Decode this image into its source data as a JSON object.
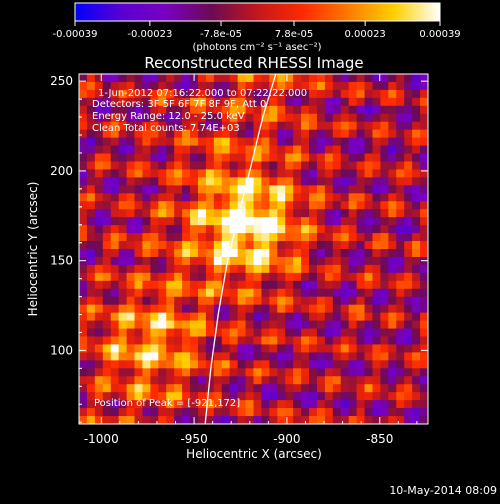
{
  "colorbar": {
    "tick_labels": [
      "-0.00039",
      "-0.00023",
      "-7.8e-05",
      "7.8e-05",
      "0.00023",
      "0.00039"
    ],
    "tick_values": [
      -0.00039,
      -0.00023,
      -7.8e-05,
      7.8e-05,
      0.00023,
      0.00039
    ],
    "range": [
      -0.00039,
      0.00039
    ],
    "unit_label": "(photons cm⁻² s⁻¹ asec⁻²)",
    "colors": [
      "#0000ff",
      "#5a00d2",
      "#7a00c0",
      "#6b0b52",
      "#c4171d",
      "#ff2a00",
      "#ff7a00",
      "#ffd000",
      "#ffffff"
    ]
  },
  "chart_data": {
    "type": "heatmap",
    "title": "Reconstructed RHESSI Image",
    "xlabel": "Heliocentric X (arcsec)",
    "ylabel": "Heliocentric Y (arcsec)",
    "xlim": [
      -1012,
      -824
    ],
    "ylim": [
      59,
      254
    ],
    "x_ticks": [
      -1000,
      -950,
      -900,
      -850
    ],
    "x_tick_labels": [
      "-1000",
      "-950",
      "-900",
      "-850"
    ],
    "y_ticks": [
      100,
      150,
      200,
      250
    ],
    "y_tick_labels": [
      "100",
      "150",
      "200",
      "250"
    ],
    "annotations": [
      "1-Jun-2012 07:16:22.000 to 07:22:22.000",
      "Detectors: 3F 5F 6F 7F 8F 9F, Att 0",
      "Energy Range: 12.0 - 25.0 keV",
      "Clean    Total counts: 7.74E+03"
    ],
    "peak_label": "Position of Peak = [-921,172]",
    "peak": [
      -921,
      172
    ],
    "limb_curve": [
      [
        -944,
        59
      ],
      [
        -941,
        90
      ],
      [
        -937,
        120
      ],
      [
        -932,
        150
      ],
      [
        -926,
        175
      ],
      [
        -920,
        200
      ],
      [
        -913,
        230
      ],
      [
        -906,
        254
      ]
    ]
  },
  "footer": {
    "date": "10-May-2014 08:09"
  }
}
